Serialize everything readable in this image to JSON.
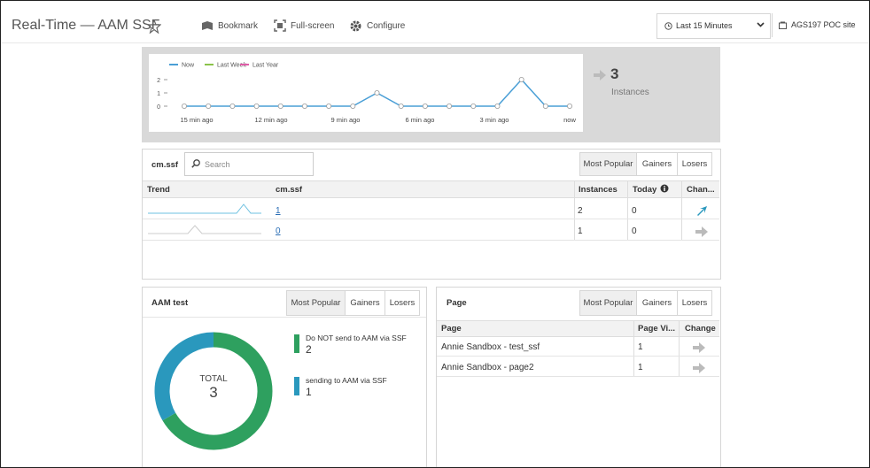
{
  "header": {
    "title": "Real-Time — AAM SSF",
    "actions": [
      "Bookmark",
      "Full-screen",
      "Configure"
    ],
    "time_range": "Last 15 Minutes",
    "site": "AGS197 POC site"
  },
  "trend_chart": {
    "type": "line",
    "series": [
      {
        "name": "Now",
        "color": "#4a9fd6",
        "values": [
          0,
          0,
          0,
          0,
          0,
          0,
          0,
          0,
          1,
          0,
          0,
          0,
          0,
          0,
          2,
          0,
          0
        ]
      },
      {
        "name": "Last Week",
        "color": "#8bc34a",
        "values": []
      },
      {
        "name": "Last Year",
        "color": "#e05ca8",
        "values": []
      }
    ],
    "x_labels": [
      "15 min ago",
      "12 min ago",
      "9 min ago",
      "6 min ago",
      "3 min ago",
      "now"
    ],
    "ylim": [
      0,
      2
    ],
    "yticks": [
      0,
      1,
      2
    ]
  },
  "instances": {
    "value": "3",
    "label": "Instances"
  },
  "cm_panel": {
    "title": "cm.ssf",
    "search_placeholder": "Search",
    "tabs": [
      "Most Popular",
      "Gainers",
      "Losers"
    ],
    "columns": [
      "Trend",
      "cm.ssf",
      "Instances",
      "Today",
      "Chan..."
    ],
    "rows": [
      [
        "1",
        "2",
        "0"
      ],
      [
        "0",
        "1",
        "0"
      ]
    ]
  },
  "aam_panel": {
    "title": "AAM test",
    "tabs": [
      "Most Popular",
      "Gainers",
      "Losers"
    ],
    "total_label": "TOTAL",
    "total": 3,
    "segments": [
      {
        "name": "Do NOT send to AAM via SSF",
        "value": 2,
        "color": "#2ea05f"
      },
      {
        "name": "sending to AAM via SSF",
        "value": 1,
        "color": "#2a98bd"
      }
    ]
  },
  "page_panel": {
    "title": "Page",
    "tabs": [
      "Most Popular",
      "Gainers",
      "Losers"
    ],
    "columns": [
      "Page",
      "Page Vi...",
      "Change"
    ],
    "rows": [
      [
        "Annie Sandbox - test_ssf",
        "1"
      ],
      [
        "Annie Sandbox - page2",
        "1"
      ]
    ]
  }
}
